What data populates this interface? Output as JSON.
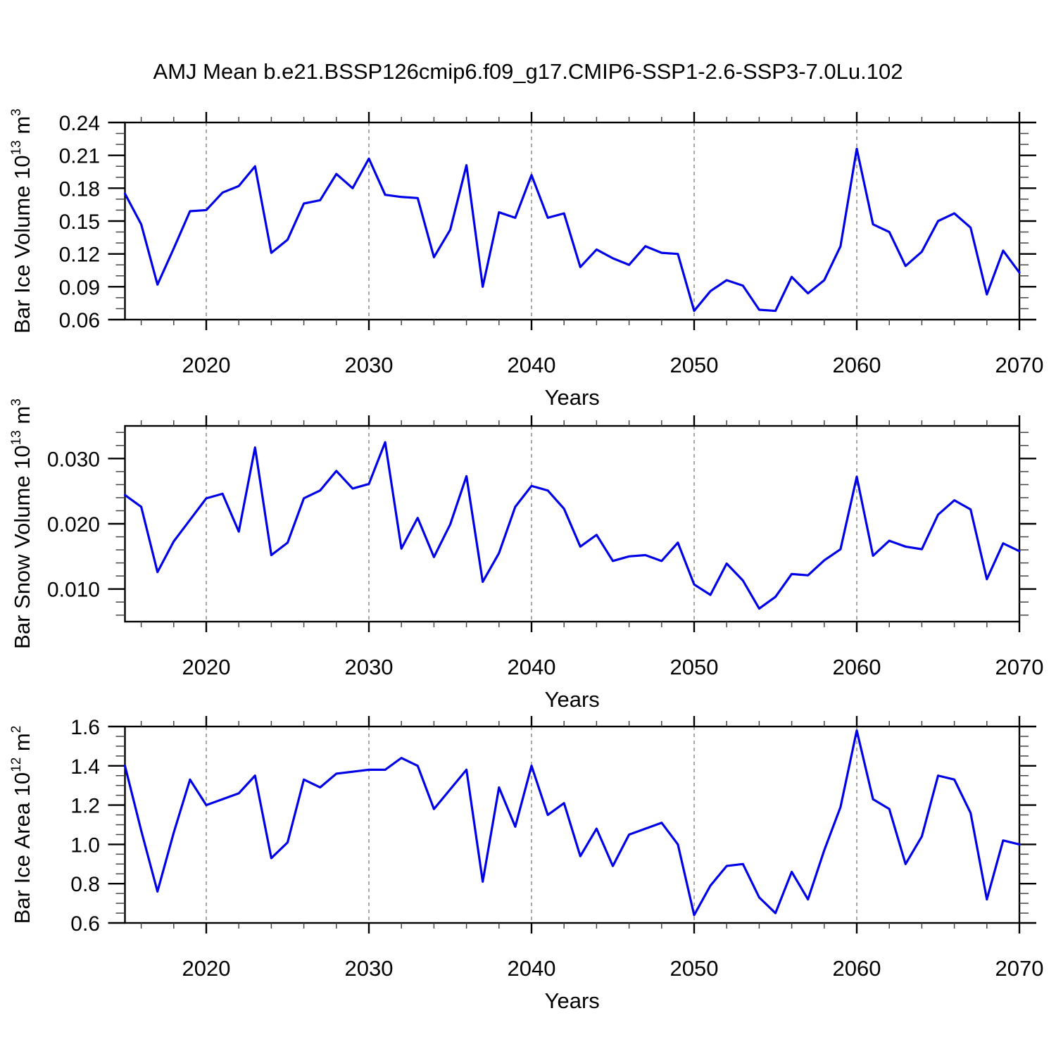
{
  "title": "AMJ Mean b.e21.BSSP126cmip6.f09_g17.CMIP6-SSP1-2.6-SSP3-7.0Lu.102",
  "line_color": "#0000e8",
  "grid_color": "#7a7a7a",
  "years": [
    2015,
    2016,
    2017,
    2018,
    2019,
    2020,
    2021,
    2022,
    2023,
    2024,
    2025,
    2026,
    2027,
    2028,
    2029,
    2030,
    2031,
    2032,
    2033,
    2034,
    2035,
    2036,
    2037,
    2038,
    2039,
    2040,
    2041,
    2042,
    2043,
    2044,
    2045,
    2046,
    2047,
    2048,
    2049,
    2050,
    2051,
    2052,
    2053,
    2054,
    2055,
    2056,
    2057,
    2058,
    2059,
    2060,
    2061,
    2062,
    2063,
    2064,
    2065,
    2066,
    2067,
    2068,
    2069,
    2070
  ],
  "chart_data": [
    {
      "id": "ice-volume",
      "type": "line",
      "title": "",
      "ylabel": "Bar Ice Volume 10^13 m^3",
      "xlabel": "Years",
      "ylim": [
        0.06,
        0.24
      ],
      "yticks": [
        0.06,
        0.09,
        0.12,
        0.15,
        0.18,
        0.21,
        0.24
      ],
      "ytick_labels": [
        "0.06",
        "0.09",
        "0.12",
        "0.15",
        "0.18",
        "0.21",
        "0.24"
      ],
      "y_minor_step": 0.01,
      "xlim": [
        2015,
        2070
      ],
      "xticks": [
        2020,
        2030,
        2040,
        2050,
        2060,
        2070
      ],
      "xtick_labels": [
        "2020",
        "2030",
        "2040",
        "2050",
        "2060",
        "2070"
      ],
      "x_minor_step": 2,
      "grid_years": [
        2020,
        2030,
        2040,
        2050,
        2060
      ],
      "values": [
        0.175,
        0.147,
        0.092,
        0.125,
        0.159,
        0.16,
        0.176,
        0.182,
        0.2,
        0.121,
        0.133,
        0.166,
        0.169,
        0.193,
        0.18,
        0.207,
        0.174,
        0.172,
        0.171,
        0.117,
        0.142,
        0.201,
        0.09,
        0.158,
        0.153,
        0.192,
        0.153,
        0.157,
        0.108,
        0.124,
        0.116,
        0.11,
        0.127,
        0.121,
        0.12,
        0.068,
        0.086,
        0.096,
        0.091,
        0.069,
        0.068,
        0.099,
        0.084,
        0.096,
        0.127,
        0.216,
        0.147,
        0.14,
        0.109,
        0.122,
        0.15,
        0.157,
        0.144,
        0.083,
        0.123,
        0.103
      ]
    },
    {
      "id": "snow-volume",
      "type": "line",
      "title": "",
      "ylabel": "Bar Snow Volume 10^13 m^3",
      "xlabel": "Years",
      "ylim": [
        0.005,
        0.035
      ],
      "yticks": [
        0.01,
        0.02,
        0.03
      ],
      "ytick_labels": [
        "0.010",
        "0.020",
        "0.030"
      ],
      "y_minor_step": 0.002,
      "xlim": [
        2015,
        2070
      ],
      "xticks": [
        2020,
        2030,
        2040,
        2050,
        2060,
        2070
      ],
      "xtick_labels": [
        "2020",
        "2030",
        "2040",
        "2050",
        "2060",
        "2070"
      ],
      "x_minor_step": 2,
      "grid_years": [
        2020,
        2030,
        2040,
        2050,
        2060
      ],
      "values": [
        0.0244,
        0.0226,
        0.0126,
        0.0173,
        0.0206,
        0.0239,
        0.0246,
        0.0188,
        0.0317,
        0.0152,
        0.0171,
        0.0239,
        0.0251,
        0.0281,
        0.0254,
        0.0261,
        0.0325,
        0.0162,
        0.0209,
        0.0149,
        0.0199,
        0.0273,
        0.0111,
        0.0155,
        0.0226,
        0.0258,
        0.0251,
        0.0223,
        0.0165,
        0.0183,
        0.0143,
        0.015,
        0.0152,
        0.0143,
        0.0171,
        0.0107,
        0.0091,
        0.0139,
        0.0113,
        0.007,
        0.0088,
        0.0123,
        0.0121,
        0.0144,
        0.0161,
        0.0272,
        0.0151,
        0.0174,
        0.0165,
        0.0161,
        0.0214,
        0.0236,
        0.0222,
        0.0115,
        0.017,
        0.0158
      ]
    },
    {
      "id": "ice-area",
      "type": "line",
      "title": "",
      "ylabel": "Bar Ice Area 10^12 m^2",
      "xlabel": "Years",
      "ylim": [
        0.6,
        1.6
      ],
      "yticks": [
        0.6,
        0.8,
        1.0,
        1.2,
        1.4,
        1.6
      ],
      "ytick_labels": [
        "0.6",
        "0.8",
        "1.0",
        "1.2",
        "1.4",
        "1.6"
      ],
      "y_minor_step": 0.05,
      "xlim": [
        2015,
        2070
      ],
      "xticks": [
        2020,
        2030,
        2040,
        2050,
        2060,
        2070
      ],
      "xtick_labels": [
        "2020",
        "2030",
        "2040",
        "2050",
        "2060",
        "2070"
      ],
      "x_minor_step": 2,
      "grid_years": [
        2020,
        2030,
        2040,
        2050,
        2060
      ],
      "values": [
        1.4,
        1.07,
        0.76,
        1.06,
        1.33,
        1.2,
        1.23,
        1.26,
        1.35,
        0.93,
        1.01,
        1.33,
        1.29,
        1.36,
        1.37,
        1.38,
        1.38,
        1.44,
        1.4,
        1.18,
        1.28,
        1.38,
        0.81,
        1.29,
        1.09,
        1.4,
        1.15,
        1.21,
        0.94,
        1.08,
        0.89,
        1.05,
        1.08,
        1.11,
        1.0,
        0.64,
        0.79,
        0.89,
        0.9,
        0.73,
        0.65,
        0.86,
        0.72,
        0.97,
        1.19,
        1.58,
        1.23,
        1.18,
        0.9,
        1.04,
        1.35,
        1.33,
        1.16,
        0.72,
        1.02,
        1.0
      ]
    }
  ]
}
